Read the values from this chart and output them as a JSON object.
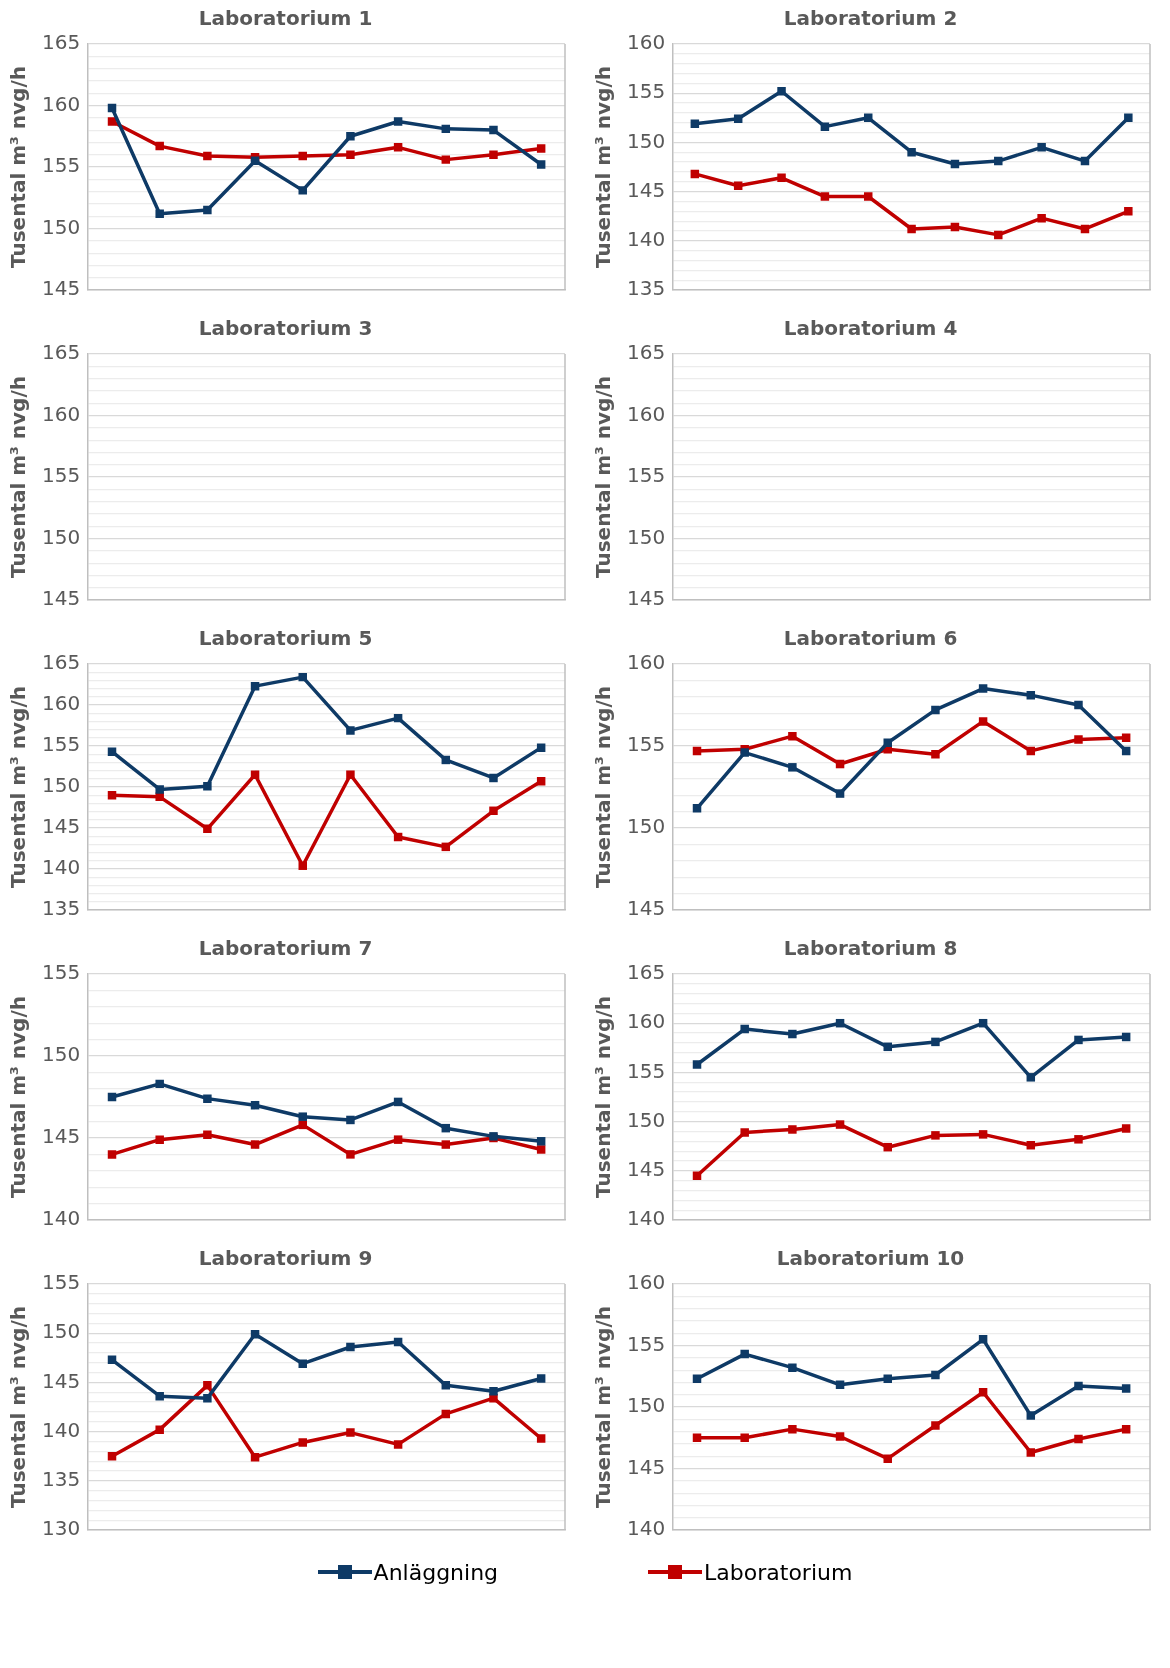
{
  "chart_data": [
    {
      "type": "line",
      "title": "Laboratorium 1",
      "ylabel": "Tusental m³ nvg/h",
      "categories": [
        null,
        null,
        null,
        null,
        null,
        null,
        null,
        null,
        null,
        null
      ],
      "ylim": [
        145,
        165
      ],
      "yticks": [
        145,
        {
          "value": 146,
          "label": null
        },
        {
          "value": 147,
          "label": null
        },
        {
          "value": 148,
          "label": null
        },
        {
          "value": 149,
          "label": null
        },
        150,
        {
          "value": 151,
          "label": null
        },
        {
          "value": 152,
          "label": null
        },
        {
          "value": 153,
          "label": null
        },
        {
          "value": 154,
          "label": null
        },
        155,
        {
          "value": 156,
          "label": null
        },
        {
          "value": 157,
          "label": null
        },
        {
          "value": 158,
          "label": null
        },
        {
          "value": 159,
          "label": null
        },
        160,
        {
          "value": 161,
          "label": null
        },
        {
          "value": 162,
          "label": null
        },
        {
          "value": 163,
          "label": null
        },
        {
          "value": 164,
          "label": null
        },
        165
      ],
      "grid": "y",
      "tick_labels": "y",
      "marker": "square",
      "legend": "bottom",
      "series": [
        {
          "name": "Anläggning",
          "color": "#0e3a66",
          "values": [
            159.8,
            151.2,
            151.5,
            155.5,
            153.1,
            157.5,
            158.7,
            158.1,
            158.0,
            155.2
          ]
        },
        {
          "name": "Laboratorium",
          "color": "#c00000",
          "values": [
            158.7,
            156.7,
            155.9,
            155.8,
            155.9,
            156.0,
            156.6,
            155.6,
            156.0,
            156.5
          ]
        }
      ]
    },
    {
      "type": "line",
      "title": "Laboratorium 2",
      "ylabel": "Tusental m³ nvg/h",
      "categories": [
        null,
        null,
        null,
        null,
        null,
        null,
        null,
        null,
        null,
        null,
        null
      ],
      "ylim": [
        135,
        160
      ],
      "yticks": [
        135,
        {
          "value": 136,
          "label": null
        },
        {
          "value": 137,
          "label": null
        },
        {
          "value": 138,
          "label": null
        },
        {
          "value": 139,
          "label": null
        },
        140,
        {
          "value": 141,
          "label": null
        },
        {
          "value": 142,
          "label": null
        },
        {
          "value": 143,
          "label": null
        },
        {
          "value": 144,
          "label": null
        },
        145,
        {
          "value": 146,
          "label": null
        },
        {
          "value": 147,
          "label": null
        },
        {
          "value": 148,
          "label": null
        },
        {
          "value": 149,
          "label": null
        },
        150,
        {
          "value": 151,
          "label": null
        },
        {
          "value": 152,
          "label": null
        },
        {
          "value": 153,
          "label": null
        },
        {
          "value": 154,
          "label": null
        },
        155,
        {
          "value": 156,
          "label": null
        },
        {
          "value": 157,
          "label": null
        },
        {
          "value": 158,
          "label": null
        },
        {
          "value": 159,
          "label": null
        },
        160
      ],
      "grid": "y",
      "tick_labels": "y",
      "marker": "square",
      "series": [
        {
          "color": "#0e3a66",
          "values": [
            151.9,
            152.4,
            155.2,
            151.6,
            152.5,
            149.0,
            147.8,
            148.1,
            149.5,
            148.1,
            152.5
          ]
        },
        {
          "color": "#c00000",
          "values": [
            146.8,
            145.6,
            146.4,
            144.5,
            144.5,
            141.2,
            141.4,
            140.6,
            142.3,
            141.2,
            143.0
          ]
        }
      ]
    },
    {
      "type": "line",
      "title": "Laboratorium 3",
      "ylabel": "Tusental m³ nvg/h",
      "categories": [
        null,
        null,
        null,
        null,
        null,
        null,
        null,
        null,
        null,
        null
      ],
      "ylim": [
        145,
        165
      ],
      "yticks": [
        145,
        {
          "value": 146,
          "label": null
        },
        {
          "value": 147,
          "label": null
        },
        {
          "value": 148,
          "label": null
        },
        {
          "value": 149,
          "label": null
        },
        150,
        {
          "value": 151,
          "label": null
        },
        {
          "value": 152,
          "label": null
        },
        {
          "value": 153,
          "label": null
        },
        {
          "value": 154,
          "label": null
        },
        155,
        {
          "value": 156,
          "label": null
        },
        {
          "value": 157,
          "label": null
        },
        {
          "value": 158,
          "label": null
        },
        {
          "value": 159,
          "label": null
        },
        160,
        {
          "value": 161,
          "label": null
        },
        {
          "value": 162,
          "label": null
        },
        {
          "value": 163,
          "label": null
        },
        {
          "value": 164,
          "label": null
        },
        165
      ],
      "grid": "y",
      "tick_labels": "y",
      "marker": "square",
      "series": [
        {
          "color": "#0e3a66",
          "values": [
            null,
            null,
            null,
            null,
            null,
            null,
            null,
            null,
            null,
            null
          ]
        },
        {
          "color": "#c00000",
          "values": [
            null,
            null,
            null,
            null,
            null,
            null,
            null,
            null,
            null,
            null
          ]
        }
      ]
    },
    {
      "type": "line",
      "title": "Laboratorium 4",
      "ylabel": "Tusental m³ nvg/h",
      "categories": [
        null,
        null,
        null,
        null,
        null,
        null,
        null,
        null,
        null,
        null
      ],
      "ylim": [
        145,
        165
      ],
      "yticks": [
        145,
        {
          "value": 146,
          "label": null
        },
        {
          "value": 147,
          "label": null
        },
        {
          "value": 148,
          "label": null
        },
        {
          "value": 149,
          "label": null
        },
        150,
        {
          "value": 151,
          "label": null
        },
        {
          "value": 152,
          "label": null
        },
        {
          "value": 153,
          "label": null
        },
        {
          "value": 154,
          "label": null
        },
        155,
        {
          "value": 156,
          "label": null
        },
        {
          "value": 157,
          "label": null
        },
        {
          "value": 158,
          "label": null
        },
        {
          "value": 159,
          "label": null
        },
        160,
        {
          "value": 161,
          "label": null
        },
        {
          "value": 162,
          "label": null
        },
        {
          "value": 163,
          "label": null
        },
        {
          "value": 164,
          "label": null
        },
        165
      ],
      "grid": "y",
      "tick_labels": "y",
      "marker": "square",
      "series": [
        {
          "color": "#0e3a66",
          "values": [
            null,
            null,
            null,
            null,
            null,
            null,
            null,
            null,
            null,
            null
          ]
        },
        {
          "color": "#c00000",
          "values": [
            null,
            null,
            null,
            null,
            null,
            null,
            null,
            null,
            null,
            null
          ]
        }
      ]
    },
    {
      "type": "line",
      "title": "Laboratorium 5",
      "ylabel": "Tusental m³ nvg/h",
      "categories": [
        null,
        null,
        null,
        null,
        null,
        null,
        null,
        null,
        null,
        null
      ],
      "ylim": [
        135,
        165
      ],
      "yticks": [
        135,
        {
          "value": 136,
          "label": null
        },
        {
          "value": 137,
          "label": null
        },
        {
          "value": 138,
          "label": null
        },
        {
          "value": 139,
          "label": null
        },
        140,
        {
          "value": 141,
          "label": null
        },
        {
          "value": 142,
          "label": null
        },
        {
          "value": 143,
          "label": null
        },
        {
          "value": 144,
          "label": null
        },
        145,
        {
          "value": 146,
          "label": null
        },
        {
          "value": 147,
          "label": null
        },
        {
          "value": 148,
          "label": null
        },
        {
          "value": 149,
          "label": null
        },
        150,
        {
          "value": 151,
          "label": null
        },
        {
          "value": 152,
          "label": null
        },
        {
          "value": 153,
          "label": null
        },
        {
          "value": 154,
          "label": null
        },
        155,
        {
          "value": 156,
          "label": null
        },
        {
          "value": 157,
          "label": null
        },
        {
          "value": 158,
          "label": null
        },
        {
          "value": 159,
          "label": null
        },
        160,
        {
          "value": 161,
          "label": null
        },
        {
          "value": 162,
          "label": null
        },
        {
          "value": 163,
          "label": null
        },
        {
          "value": 164,
          "label": null
        },
        165
      ],
      "grid": "y",
      "tick_labels": "y",
      "marker": "square",
      "series": [
        {
          "color": "#0e3a66",
          "values": [
            154.3,
            149.7,
            150.1,
            162.3,
            163.4,
            156.9,
            158.4,
            153.3,
            151.1,
            154.8
          ]
        },
        {
          "color": "#c00000",
          "values": [
            149.0,
            148.8,
            144.9,
            151.5,
            140.4,
            151.5,
            143.9,
            142.7,
            147.1,
            150.7
          ]
        }
      ]
    },
    {
      "type": "line",
      "title": "Laboratorium 6",
      "ylabel": "Tusental m³ nvg/h",
      "categories": [
        null,
        null,
        null,
        null,
        null,
        null,
        null,
        null,
        null,
        null
      ],
      "ylim": [
        145,
        160
      ],
      "yticks": [
        145,
        {
          "value": 146,
          "label": null
        },
        {
          "value": 147,
          "label": null
        },
        {
          "value": 148,
          "label": null
        },
        {
          "value": 149,
          "label": null
        },
        150,
        {
          "value": 151,
          "label": null
        },
        {
          "value": 152,
          "label": null
        },
        {
          "value": 153,
          "label": null
        },
        {
          "value": 154,
          "label": null
        },
        155,
        {
          "value": 156,
          "label": null
        },
        {
          "value": 157,
          "label": null
        },
        {
          "value": 158,
          "label": null
        },
        {
          "value": 159,
          "label": null
        },
        160
      ],
      "grid": "y",
      "tick_labels": "y",
      "marker": "square",
      "series": [
        {
          "color": "#0e3a66",
          "values": [
            151.2,
            154.6,
            153.7,
            152.1,
            155.2,
            157.2,
            158.5,
            158.1,
            157.5,
            154.7
          ]
        },
        {
          "color": "#c00000",
          "values": [
            154.7,
            154.8,
            155.6,
            153.9,
            154.8,
            154.5,
            156.5,
            154.7,
            155.4,
            155.5
          ]
        }
      ]
    },
    {
      "type": "line",
      "title": "Laboratorium 7",
      "ylabel": "Tusental m³ nvg/h",
      "categories": [
        null,
        null,
        null,
        null,
        null,
        null,
        null,
        null,
        null,
        null
      ],
      "ylim": [
        140,
        155
      ],
      "yticks": [
        140,
        {
          "value": 141,
          "label": null
        },
        {
          "value": 142,
          "label": null
        },
        {
          "value": 143,
          "label": null
        },
        {
          "value": 144,
          "label": null
        },
        145,
        {
          "value": 146,
          "label": null
        },
        {
          "value": 147,
          "label": null
        },
        {
          "value": 148,
          "label": null
        },
        {
          "value": 149,
          "label": null
        },
        150,
        {
          "value": 151,
          "label": null
        },
        {
          "value": 152,
          "label": null
        },
        {
          "value": 153,
          "label": null
        },
        {
          "value": 154,
          "label": null
        },
        155
      ],
      "grid": "y",
      "tick_labels": "y",
      "marker": "square",
      "series": [
        {
          "color": "#0e3a66",
          "values": [
            147.5,
            148.3,
            147.4,
            147.0,
            146.3,
            146.1,
            147.2,
            145.6,
            145.1,
            144.8
          ]
        },
        {
          "color": "#c00000",
          "values": [
            144.0,
            144.9,
            145.2,
            144.6,
            145.8,
            144.0,
            144.9,
            144.6,
            145.0,
            144.3
          ]
        }
      ]
    },
    {
      "type": "line",
      "title": "Laboratorium 8",
      "ylabel": "Tusental m³ nvg/h",
      "categories": [
        null,
        null,
        null,
        null,
        null,
        null,
        null,
        null,
        null,
        null
      ],
      "ylim": [
        140,
        165
      ],
      "yticks": [
        140,
        {
          "value": 141,
          "label": null
        },
        {
          "value": 142,
          "label": null
        },
        {
          "value": 143,
          "label": null
        },
        {
          "value": 144,
          "label": null
        },
        145,
        {
          "value": 146,
          "label": null
        },
        {
          "value": 147,
          "label": null
        },
        {
          "value": 148,
          "label": null
        },
        {
          "value": 149,
          "label": null
        },
        150,
        {
          "value": 151,
          "label": null
        },
        {
          "value": 152,
          "label": null
        },
        {
          "value": 153,
          "label": null
        },
        {
          "value": 154,
          "label": null
        },
        155,
        {
          "value": 156,
          "label": null
        },
        {
          "value": 157,
          "label": null
        },
        {
          "value": 158,
          "label": null
        },
        {
          "value": 159,
          "label": null
        },
        160,
        {
          "value": 161,
          "label": null
        },
        {
          "value": 162,
          "label": null
        },
        {
          "value": 163,
          "label": null
        },
        {
          "value": 164,
          "label": null
        },
        165
      ],
      "grid": "y",
      "tick_labels": "y",
      "marker": "square",
      "series": [
        {
          "color": "#0e3a66",
          "values": [
            155.8,
            159.4,
            158.9,
            160.0,
            157.6,
            158.1,
            160.0,
            154.5,
            158.3,
            158.6
          ]
        },
        {
          "color": "#c00000",
          "values": [
            144.5,
            148.9,
            149.2,
            149.7,
            147.4,
            148.6,
            148.7,
            147.6,
            148.2,
            149.3
          ]
        }
      ]
    },
    {
      "type": "line",
      "title": "Laboratorium 9",
      "ylabel": "Tusental m³ nvg/h",
      "categories": [
        null,
        null,
        null,
        null,
        null,
        null,
        null,
        null,
        null,
        null
      ],
      "ylim": [
        130,
        155
      ],
      "yticks": [
        130,
        {
          "value": 131,
          "label": null
        },
        {
          "value": 132,
          "label": null
        },
        {
          "value": 133,
          "label": null
        },
        {
          "value": 134,
          "label": null
        },
        135,
        {
          "value": 136,
          "label": null
        },
        {
          "value": 137,
          "label": null
        },
        {
          "value": 138,
          "label": null
        },
        {
          "value": 139,
          "label": null
        },
        140,
        {
          "value": 141,
          "label": null
        },
        {
          "value": 142,
          "label": null
        },
        {
          "value": 143,
          "label": null
        },
        {
          "value": 144,
          "label": null
        },
        145,
        {
          "value": 146,
          "label": null
        },
        {
          "value": 147,
          "label": null
        },
        {
          "value": 148,
          "label": null
        },
        {
          "value": 149,
          "label": null
        },
        150,
        {
          "value": 151,
          "label": null
        },
        {
          "value": 152,
          "label": null
        },
        {
          "value": 153,
          "label": null
        },
        {
          "value": 154,
          "label": null
        },
        155
      ],
      "grid": "y",
      "tick_labels": "y",
      "marker": "square",
      "series": [
        {
          "color": "#0e3a66",
          "values": [
            147.3,
            143.6,
            143.4,
            149.9,
            146.9,
            148.6,
            149.1,
            144.7,
            144.1,
            145.4
          ]
        },
        {
          "color": "#c00000",
          "values": [
            137.5,
            140.2,
            144.7,
            137.4,
            138.9,
            139.9,
            138.7,
            141.8,
            143.4,
            139.3
          ]
        }
      ]
    },
    {
      "type": "line",
      "title": "Laboratorium 10",
      "ylabel": "Tusental m³ nvg/h",
      "categories": [
        null,
        null,
        null,
        null,
        null,
        null,
        null,
        null,
        null,
        null
      ],
      "ylim": [
        140,
        160
      ],
      "yticks": [
        140,
        {
          "value": 141,
          "label": null
        },
        {
          "value": 142,
          "label": null
        },
        {
          "value": 143,
          "label": null
        },
        {
          "value": 144,
          "label": null
        },
        145,
        {
          "value": 146,
          "label": null
        },
        {
          "value": 147,
          "label": null
        },
        {
          "value": 148,
          "label": null
        },
        {
          "value": 149,
          "label": null
        },
        150,
        {
          "value": 151,
          "label": null
        },
        {
          "value": 152,
          "label": null
        },
        {
          "value": 153,
          "label": null
        },
        {
          "value": 154,
          "label": null
        },
        155,
        {
          "value": 156,
          "label": null
        },
        {
          "value": 157,
          "label": null
        },
        {
          "value": 158,
          "label": null
        },
        {
          "value": 159,
          "label": null
        },
        160
      ],
      "grid": "y",
      "tick_labels": "y",
      "marker": "square",
      "series": [
        {
          "color": "#0e3a66",
          "values": [
            152.3,
            154.3,
            153.2,
            151.8,
            152.3,
            152.6,
            155.5,
            149.3,
            151.7,
            151.5
          ]
        },
        {
          "color": "#c00000",
          "values": [
            147.5,
            147.5,
            148.2,
            147.6,
            145.8,
            148.5,
            151.2,
            146.3,
            147.4,
            148.2
          ]
        }
      ]
    }
  ]
}
